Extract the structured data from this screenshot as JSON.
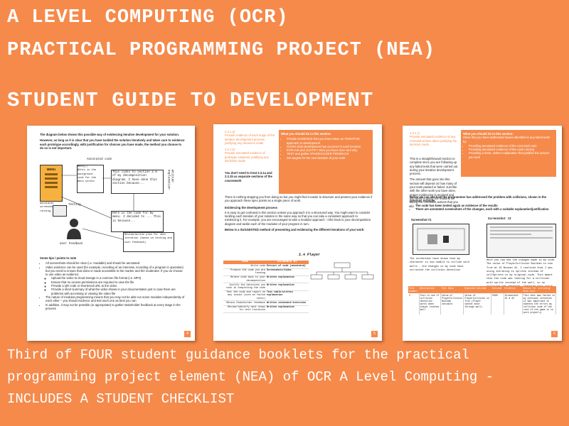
{
  "header": {
    "line1": "A LEVEL COMPUTING (OCR)",
    "line2": "PRACTICAL PROGRAMMING PROJECT (NEA)",
    "line3": "STUDENT GUIDE TO DEVELOPMENT"
  },
  "footer": {
    "text": "Third of FOUR student guidance booklets for the practical programming project element (NEA) of OCR A Level Computing - INCLUDES A STUDENT CHECKLIST"
  },
  "page1": {
    "intro": "The diagram below shows this possible way of evidencing iterative development for your solution.",
    "intro2": "However, as long as it is clear that you have tackled the solution iteratively and taken care to evidence each prototype accordingly, with justification for choices you have made, the method you choose to do so is not important.",
    "annotated_code": "Annotated code",
    "menu": "MENU",
    "code_box": "Menu();\n@this is the\nbackground\ncode for the\nmenu screen",
    "explain1": "This links to section 2.8 of my decomposition diagram. I have done this section because...",
    "written_expl": "Written explanation",
    "annotated": "annotated screenshot of code running",
    "explain2": "Here is the code for my menu. I decided to ... This is because...",
    "testing": "Testing",
    "user_feedback": "User Feedback",
    "review": "Review/action plan for next iteration (based on testing and user feedback)",
    "tips_title": "Some tips / points to note",
    "tips": [
      "All screenshots should be clear (i.e. readable) and should be annotated",
      "Video evidence can be used (for example, recording of an interview, recording of a program in operation) but you need to ensure that video is made accessible to the marker and the moderator. If you do choose to use video as evidence:",
      "The nature of modular programming means that you may not be able run some modules independently of each other – you should evidence and test each one as best you can",
      "In addition, it may not be possible (or appropriate) to gather stakeholder feedback at every stage in the process"
    ],
    "subtips": [
      "Upload the video to cloud storage in a common file format (i.e. MP4)",
      "Ensure that no access permissions are required to view the file",
      "Provide a QR code or shortened URL to the video",
      "Provide a short summary of what the video shows in your documentation just in case there are problems with accessing or viewing the video file"
    ],
    "page_number": "4"
  },
  "page2": {
    "sec1": "2.3.1 a)",
    "sec1_text": "Provide evidence of each stage of the iterative development process, justifying any decisions made",
    "sec2": "2.3.1 b)",
    "sec2_text": "Provide annotated evidence of prototype solutions, justifying any decisions made",
    "side_title": "What you should do in this section:",
    "side_items": [
      "Provide EVIDENCE that you have taken an ITERATIVE approach to development",
      "SHOW what development has occurred in each iteration",
      "EXPLAIN and JUSTIFY what you have done and why",
      "TEST and gather STAKEHOLDER FEEDBACK",
      "Set targets for the next iteration of your work"
    ],
    "note": "You don't need to treat 2.3.1a and 2.3.1b as separate sections of the coursework",
    "para1": "There is nothing stopping you from doing so but you might find it easier to structure and present your evidence if you approach these spec points as a single piece of work.",
    "evid_title": "Evidencing the development process",
    "para2": "It is easy to get confused in this section unless you approach it in a structured way. You might want to consider tackling each iteration of your solution in the same way so that you can take a consistent approach to evidencing it. For example, you are encouraged to take a modular approach - refer back to your decomposition diagram and tackle each of the modules of your program in turn.",
    "suggested": "Below is a SUGGESTED method of presenting and evidencing the different iterations of your work:",
    "diagram_title": "2.4 Player",
    "table_head": [
      "TASK",
      "EVIDENCE BY"
    ],
    "table_rows": [
      [
        "Write code",
        "Extract of code (annotated)"
      ],
      [
        "Produce the code you are running",
        "Screenshots/Video"
      ],
      [
        "Relate code back to your decomposition",
        "Written explanation"
      ],
      [
        "Justify the decisions you took in completing the code",
        "Written explanation"
      ],
      [
        "Test the code and report on any issues (such as failed tests)",
        "Test table/written explanation"
      ],
      [
        "Obtain Stakeholder feedback",
        "Written statement/interview"
      ],
      [
        "Review/identify next steps for next iteration",
        "Written explanation"
      ]
    ],
    "page_number": "5"
  },
  "page3": {
    "sec": "2.3.1 c)",
    "sec_text": "Provide annotated evidence of any remedial actions taken justifying the decision made",
    "side_title": "What you should do in this section:",
    "side_intro": "Show that you have addressed issues identified in any failed tests by:",
    "side_items": [
      "Providing annotated evidence of the corrected code",
      "Providing annotated evidence of the code running",
      "Providing a short, written explanation that justifies the actions you took"
    ],
    "para1": "This is a straightforward section to complete since you are following up any failed tests that were carried out during your iterative development process.",
    "para2": "The amount that goes into this section will depend on how many of your tests passed or failed. Just like with the other work you have done, proper evidencing is required and you need to justify the reasons for taking the corrective actions that you did.",
    "below": "Below we can see how the programmer has addressed the problem with collisions, shown in the previous example.",
    "bullets": [
      "The code has been tested again as evidence of the results",
      "There are annotated screenshots of the changes, each with a suitable explanation/justification"
    ],
    "screenshot1": "Screenshot #1",
    "screenshot2": "Screenshot #2",
    "caption1": "The screenshot have shown that my character is now unable to collide with walls - the changes to my code have corrected the collision detection",
    "caption2": "Here you can see the changes made to my code. The value of PlayerCollision Boolean is now True at 15 Nivean 44. I realised that I was using iterating to sprites instead of collSprites to my original code. This meant that the code was looking for a collision with sprite instead of the wall, so no collision was detected. Changing this value corrected the problem.",
    "table_head": [
      "Test number",
      "Description",
      "Test Data",
      "Expected Outcome",
      "Outcome",
      "Evidence",
      "Reason for including this test"
    ],
    "table_row": [
      "1",
      "Test to see if collision detection works when player touches wall",
      "Value of PlayerCollision Boolean variable",
      "Value of PlayerCollision is True (Player cannot move through wall)",
      "PASS",
      "Screenshot #1 & #2",
      "This test was failed in my previous iteration - it was important to address the errors my collision code of the rest of the game is to work properly."
    ],
    "page_number": "6"
  }
}
